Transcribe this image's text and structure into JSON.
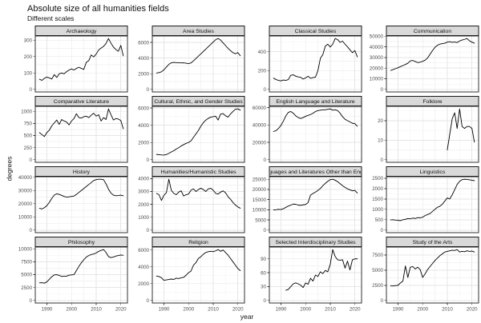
{
  "title": "Absolute size of all humanities fields",
  "subtitle": "Different scales",
  "chart_data": {
    "type": "line",
    "facets": true,
    "title": "Absolute size of all humanities fields",
    "subtitle": "Different scales",
    "xlabel": "year",
    "ylabel": "degrees",
    "legend": "none",
    "grid": true,
    "x_ticks": [
      1990,
      2000,
      2010,
      2020
    ],
    "xlim": [
      1985.3,
      2022.7
    ],
    "x": [
      1987,
      1988,
      1989,
      1990,
      1991,
      1992,
      1993,
      1994,
      1995,
      1996,
      1997,
      1998,
      1999,
      2000,
      2001,
      2002,
      2003,
      2004,
      2005,
      2006,
      2007,
      2008,
      2009,
      2010,
      2011,
      2012,
      2013,
      2014,
      2015,
      2016,
      2017,
      2018,
      2019,
      2020,
      2021
    ],
    "panels": [
      {
        "label": "Archaeology",
        "y_ticks": [
          0,
          100,
          200,
          300
        ],
        "ymax": 310,
        "y": [
          62,
          55,
          68,
          75,
          70,
          63,
          90,
          73,
          95,
          100,
          95,
          108,
          118,
          125,
          118,
          128,
          135,
          128,
          122,
          165,
          175,
          210,
          198,
          215,
          240,
          252,
          262,
          280,
          310,
          282,
          258,
          243,
          232,
          268,
          205
        ]
      },
      {
        "label": "Area Studies",
        "y_ticks": [
          0,
          2000,
          4000,
          6000
        ],
        "ymax": 6500,
        "y": [
          2100,
          2150,
          2250,
          2500,
          2850,
          3200,
          3400,
          3450,
          3420,
          3400,
          3380,
          3400,
          3350,
          3300,
          3380,
          3650,
          3950,
          4250,
          4550,
          4850,
          5150,
          5450,
          5750,
          6050,
          6350,
          6500,
          6300,
          5950,
          5600,
          5250,
          4950,
          4700,
          4550,
          4700,
          4300
        ]
      },
      {
        "label": "Classical Studies",
        "y_ticks": [
          0,
          200,
          400
        ],
        "ymax": 540,
        "y": [
          120,
          105,
          95,
          90,
          100,
          95,
          105,
          150,
          155,
          140,
          133,
          128,
          110,
          122,
          140,
          118,
          125,
          130,
          200,
          330,
          370,
          460,
          480,
          450,
          480,
          540,
          528,
          500,
          512,
          480,
          452,
          420,
          390,
          412,
          345
        ]
      },
      {
        "label": "Communication",
        "y_ticks": [
          0,
          10000,
          20000,
          30000,
          40000,
          50000
        ],
        "ymax": 47800,
        "y": [
          17800,
          18600,
          19500,
          20400,
          21400,
          22400,
          23400,
          24600,
          26800,
          27200,
          26200,
          25200,
          25600,
          26400,
          27400,
          29500,
          33000,
          36500,
          39500,
          41500,
          42500,
          43000,
          43400,
          44400,
          44800,
          44200,
          44500,
          44000,
          45500,
          46400,
          47000,
          47800,
          45600,
          44400,
          43400
        ]
      },
      {
        "label": "Comparative Literature",
        "y_ticks": [
          0,
          250,
          500,
          750,
          1000
        ],
        "ymax": 1050,
        "y": [
          560,
          520,
          480,
          560,
          610,
          700,
          760,
          820,
          730,
          830,
          800,
          780,
          720,
          800,
          850,
          950,
          870,
          860,
          890,
          900,
          870,
          920,
          960,
          900,
          930,
          800,
          870,
          830,
          1050,
          930,
          820,
          850,
          840,
          810,
          640
        ]
      },
      {
        "label": "Cultural, Ethnic, and Gender Studies",
        "y_ticks": [
          0,
          2000,
          4000,
          6000
        ],
        "ymax": 5900,
        "y": [
          620,
          590,
          560,
          550,
          600,
          750,
          900,
          1050,
          1250,
          1400,
          1600,
          1750,
          1900,
          2000,
          2200,
          2600,
          3000,
          3400,
          3900,
          4300,
          4600,
          4800,
          4950,
          5000,
          5050,
          4600,
          5300,
          5350,
          5100,
          4950,
          5300,
          5600,
          5850,
          5900,
          5750
        ]
      },
      {
        "label": "English Language and Literature",
        "y_ticks": [
          0,
          20000,
          40000,
          60000
        ],
        "ymax": 58500,
        "y": [
          32500,
          33500,
          36000,
          39500,
          44500,
          50500,
          54500,
          55500,
          53500,
          50500,
          48500,
          47500,
          48500,
          50000,
          51000,
          52000,
          53500,
          55500,
          56500,
          57000,
          57500,
          57500,
          58000,
          58500,
          57000,
          57500,
          56500,
          53500,
          49500,
          46500,
          45000,
          43500,
          42000,
          41500,
          38500
        ]
      },
      {
        "label": "Folklore",
        "y_ticks": [
          0,
          10,
          20
        ],
        "ymax": 26,
        "y": [
          null,
          null,
          null,
          null,
          null,
          null,
          null,
          null,
          null,
          null,
          null,
          null,
          null,
          null,
          null,
          null,
          null,
          null,
          null,
          null,
          null,
          null,
          null,
          5,
          13,
          21,
          24,
          16,
          26,
          17,
          16,
          17,
          17,
          16,
          9
        ]
      },
      {
        "label": "History",
        "y_ticks": [
          0,
          10000,
          20000,
          30000,
          40000
        ],
        "ymax": 38500,
        "y": [
          16500,
          16000,
          17000,
          18500,
          21000,
          24000,
          26500,
          27500,
          27000,
          26300,
          25500,
          25000,
          25200,
          25500,
          25800,
          27000,
          28500,
          30000,
          31500,
          33000,
          34500,
          36000,
          37500,
          38200,
          38500,
          38500,
          38200,
          35000,
          31000,
          28000,
          26500,
          26000,
          26200,
          26500,
          26000
        ]
      },
      {
        "label": "Humanities/Humanistic Studies",
        "y_ticks": [
          0,
          1000,
          2000,
          3000,
          4000
        ],
        "ymax": 3950,
        "y": [
          2850,
          2750,
          2300,
          2700,
          2900,
          3950,
          3100,
          2850,
          2750,
          2950,
          3050,
          2650,
          2750,
          2800,
          3100,
          3200,
          3000,
          3150,
          3250,
          3150,
          3000,
          3200,
          3250,
          3100,
          2850,
          2800,
          2950,
          3050,
          2900,
          2600,
          2400,
          2150,
          1950,
          1800,
          1700
        ]
      },
      {
        "label": "Languages and Literatures Other than English",
        "y_ticks": [
          0,
          5000,
          10000,
          15000,
          20000,
          25000
        ],
        "ymax": 25000,
        "y": [
          9900,
          10000,
          10200,
          10100,
          10500,
          11200,
          11800,
          12300,
          12800,
          12700,
          12300,
          12200,
          12400,
          12600,
          13500,
          17200,
          18000,
          18700,
          19500,
          20500,
          21800,
          23000,
          24000,
          24800,
          25000,
          24500,
          23800,
          22800,
          21800,
          21000,
          20300,
          19800,
          19300,
          19500,
          18200
        ]
      },
      {
        "label": "Linguistics",
        "y_ticks": [
          0,
          500,
          1000,
          1500,
          2000,
          2500
        ],
        "ymax": 2450,
        "y": [
          490,
          500,
          480,
          470,
          455,
          500,
          520,
          560,
          545,
          580,
          560,
          600,
          590,
          620,
          700,
          750,
          800,
          900,
          1000,
          1100,
          1150,
          1250,
          1400,
          1550,
          1500,
          1700,
          1950,
          2200,
          2350,
          2430,
          2450,
          2440,
          2420,
          2400,
          2380
        ]
      },
      {
        "label": "Philosophy",
        "y_ticks": [
          0,
          2500,
          5000,
          7500,
          10000
        ],
        "ymax": 9850,
        "y": [
          3400,
          3450,
          3350,
          3600,
          4100,
          4600,
          4950,
          5000,
          4850,
          4650,
          4700,
          4700,
          4900,
          4950,
          5000,
          5800,
          6600,
          7300,
          7900,
          8400,
          8700,
          8900,
          9000,
          9200,
          9500,
          9700,
          9850,
          9300,
          8500,
          8300,
          8400,
          8600,
          8700,
          8800,
          8750
        ]
      },
      {
        "label": "Religion",
        "y_ticks": [
          0,
          2000,
          4000,
          6000
        ],
        "ymax": 6050,
        "y": [
          2900,
          2850,
          2700,
          2400,
          2450,
          2500,
          2550,
          2500,
          2650,
          2600,
          2700,
          2750,
          3000,
          3300,
          3500,
          4200,
          4500,
          5000,
          5200,
          5500,
          5700,
          5800,
          5850,
          5800,
          5900,
          6050,
          5850,
          6000,
          5700,
          5400,
          5000,
          4600,
          4200,
          3800,
          3550
        ]
      },
      {
        "label": "Selected Interdisciplinary Studies",
        "y_ticks": [
          0,
          30,
          60,
          90
        ],
        "ymax": 110,
        "y": [
          null,
          null,
          null,
          null,
          null,
          22,
          24,
          30,
          36,
          38,
          36,
          33,
          28,
          38,
          35,
          48,
          42,
          55,
          52,
          62,
          58,
          65,
          62,
          78,
          110,
          95,
          88,
          87,
          88,
          70,
          85,
          66,
          88,
          90,
          90
        ]
      },
      {
        "label": "Study of the Arts",
        "y_ticks": [
          0,
          2500,
          5000,
          7500
        ],
        "ymax": 8400,
        "y": [
          2400,
          2400,
          2450,
          2500,
          2900,
          3200,
          5700,
          3800,
          5500,
          5600,
          5200,
          5500,
          5100,
          3800,
          4400,
          5100,
          5600,
          6100,
          6600,
          7000,
          7400,
          7700,
          8000,
          8100,
          8200,
          8300,
          8250,
          8400,
          8000,
          8100,
          8050,
          8200,
          8100,
          8150,
          8000
        ]
      }
    ]
  },
  "colors": {
    "line": "#000000",
    "strip_fill": "#d9d9d9",
    "strip_border": "#1a1a1a",
    "panel_border": "#333333",
    "panel_bg": "#ffffff",
    "grid_major": "#e6e6e6",
    "grid_minor": "#f3f3f3",
    "axis_text": "#4d4d4d",
    "tick_mark": "#333333"
  }
}
